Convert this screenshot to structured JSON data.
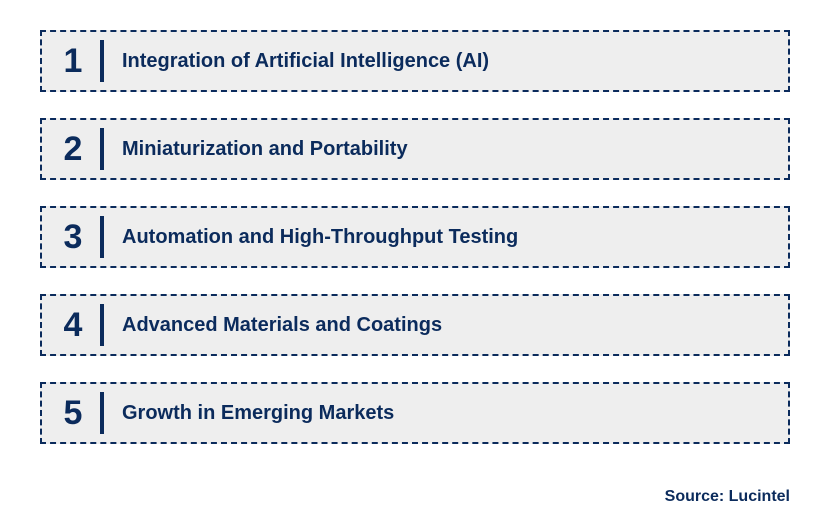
{
  "type": "infographic",
  "background_color": "#ffffff",
  "item_background_color": "#eeeeee",
  "border_color": "#0b2b5c",
  "border_style": "dashed",
  "border_width": 2,
  "text_color": "#0b2b5c",
  "number_fontsize": 34,
  "label_fontsize": 20,
  "divider_color": "#0b2b5c",
  "divider_width": 4,
  "divider_height": 42,
  "item_height": 62,
  "item_gap": 26,
  "items": [
    {
      "number": "1",
      "label": "Integration of Artificial Intelligence (AI)"
    },
    {
      "number": "2",
      "label": "Miniaturization and Portability"
    },
    {
      "number": "3",
      "label": "Automation and High-Throughput Testing"
    },
    {
      "number": "4",
      "label": "Advanced Materials and Coatings"
    },
    {
      "number": "5",
      "label": "Growth in Emerging Markets"
    }
  ],
  "source_label": "Source: Lucintel",
  "source_fontsize": 16
}
